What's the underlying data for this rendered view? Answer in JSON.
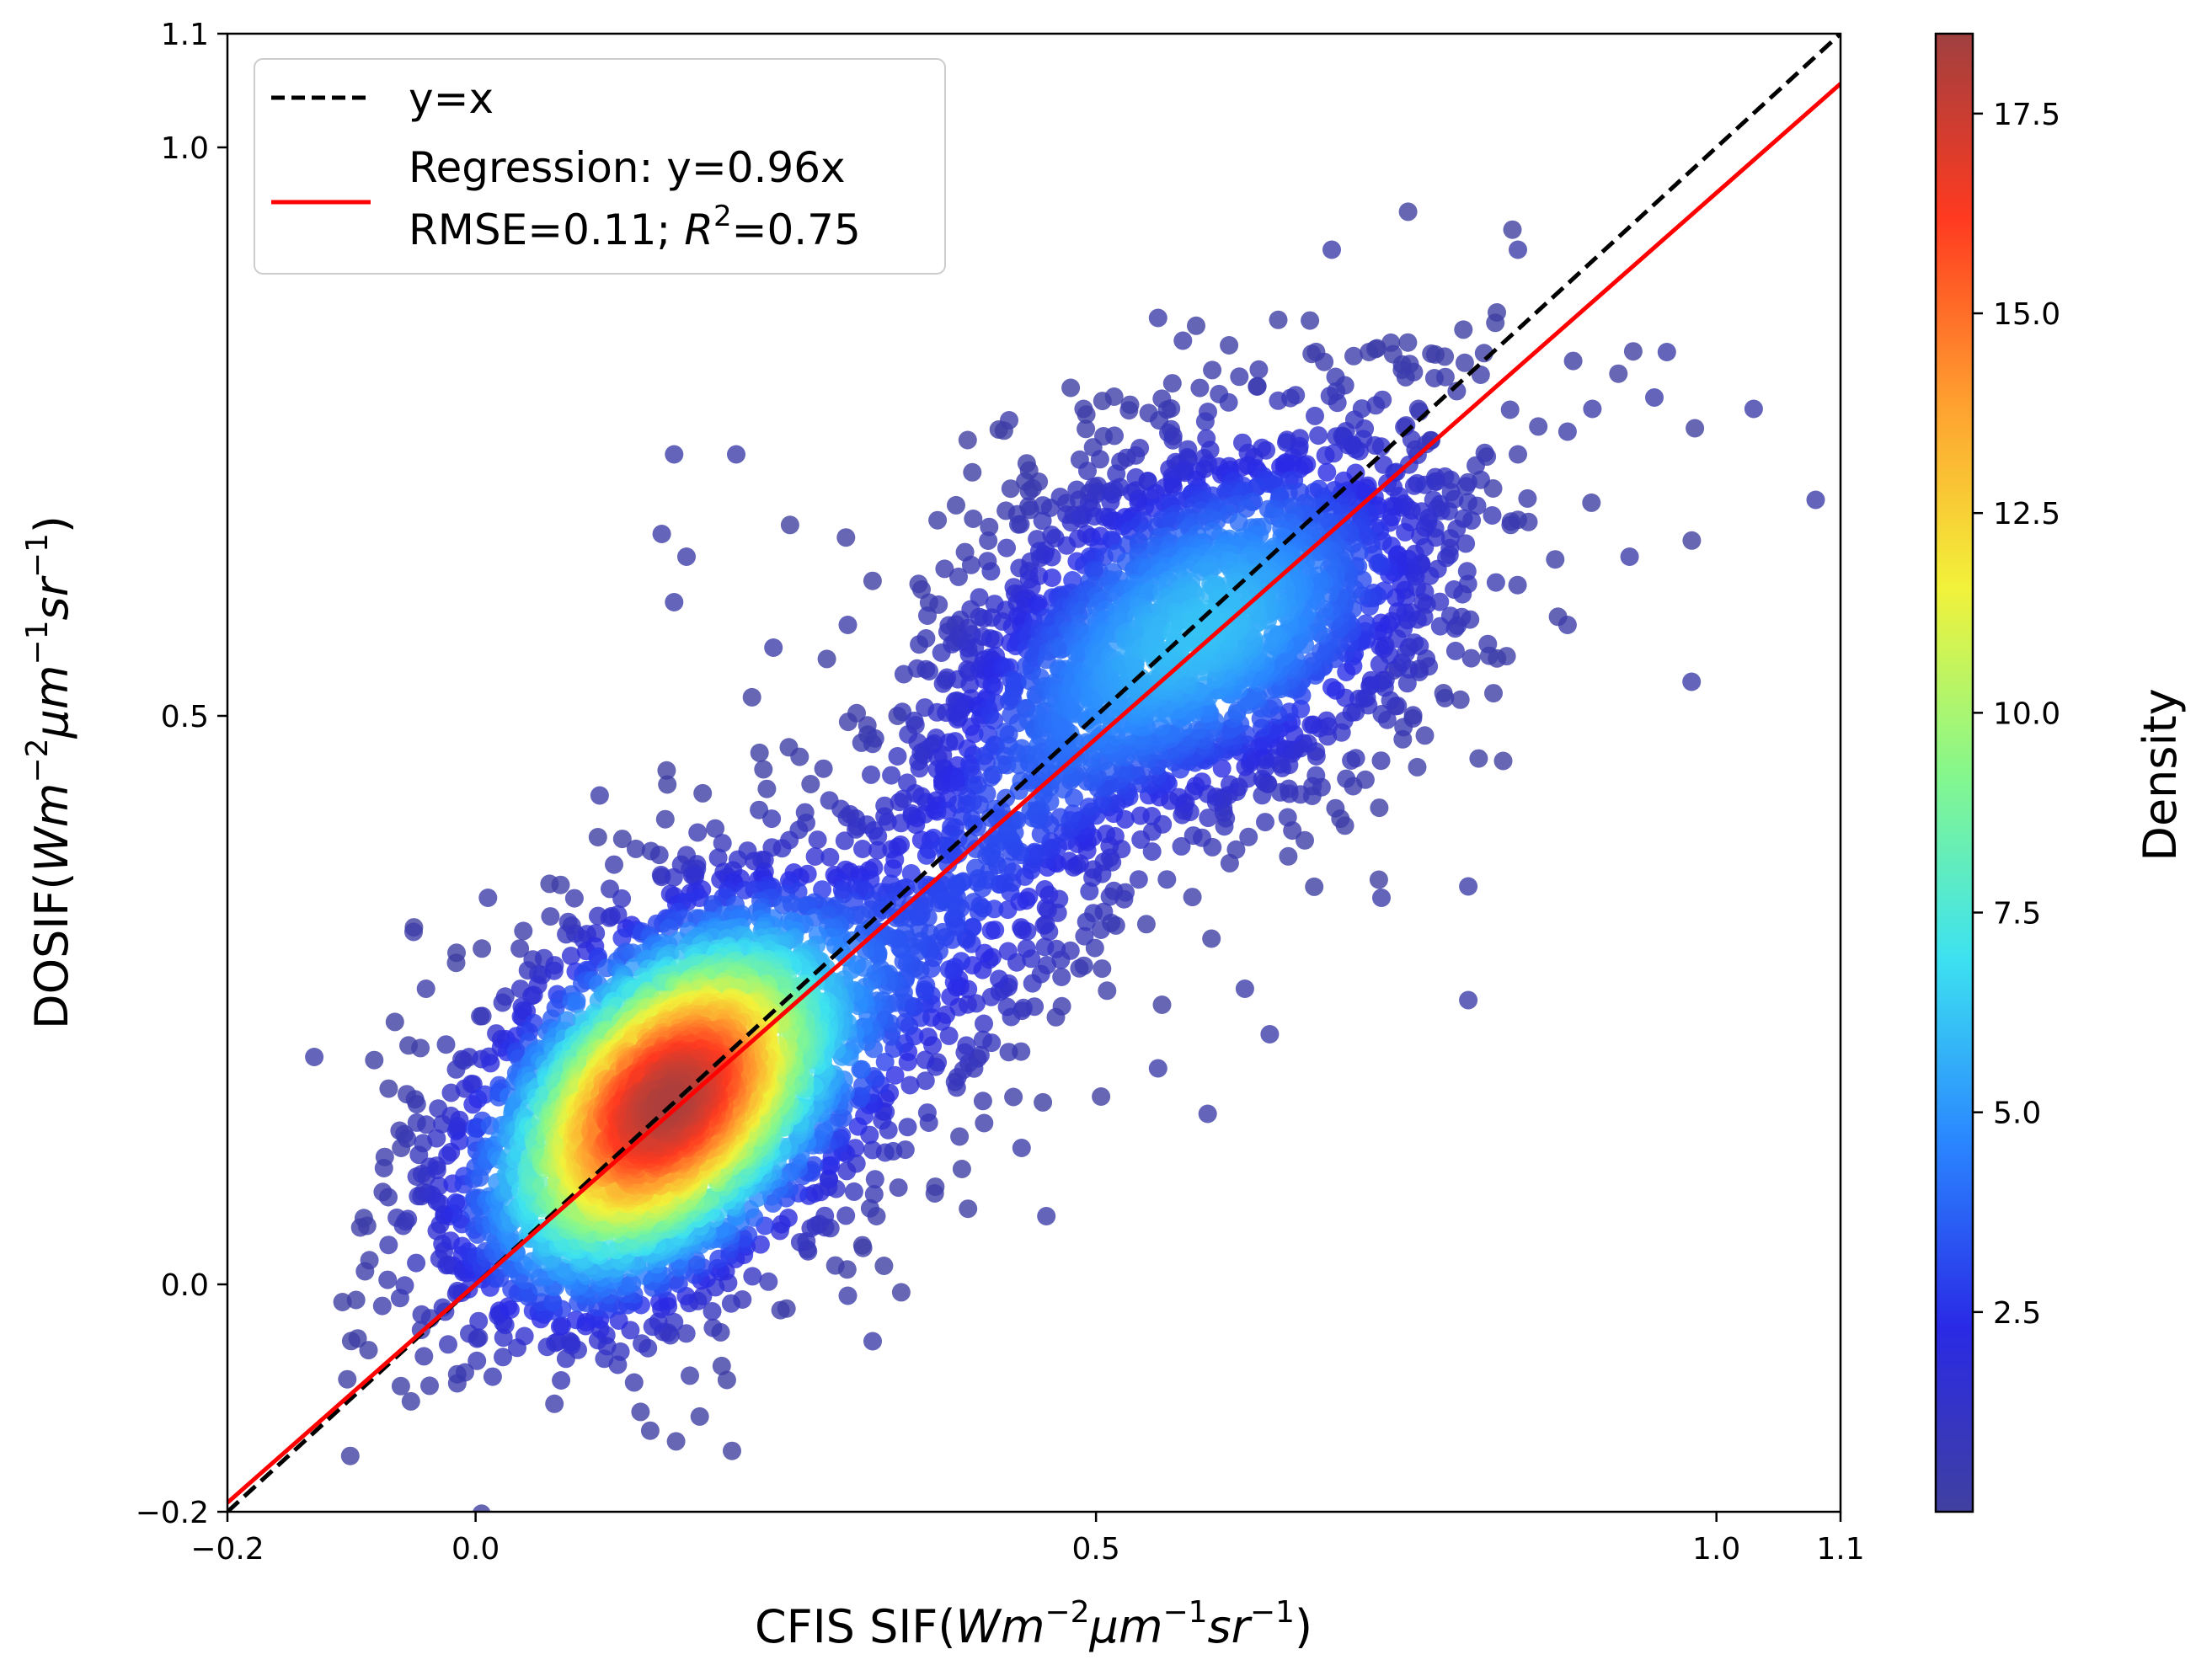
{
  "chart_data": {
    "type": "scatter",
    "title": "",
    "xlabel": {
      "prefix": "CFIS SIF(",
      "unit_parts": [
        "Wm",
        "−2",
        "μm",
        "−1",
        "sr",
        "−1"
      ],
      "suffix": ")"
    },
    "ylabel": {
      "prefix": "DOSIF(",
      "unit_parts": [
        "Wm",
        "−2",
        "μm",
        "−1",
        "sr",
        "−1"
      ],
      "suffix": ")"
    },
    "xlim": [
      -0.2,
      1.1
    ],
    "ylim": [
      -0.2,
      1.1
    ],
    "xticks": [
      {
        "value": -0.2,
        "label": "−0.2"
      },
      {
        "value": 0.0,
        "label": "0.0"
      },
      {
        "value": 0.5,
        "label": "0.5"
      },
      {
        "value": 1.0,
        "label": "1.0"
      },
      {
        "value": 1.1,
        "label": "1.1"
      }
    ],
    "yticks": [
      {
        "value": -0.2,
        "label": "−0.2"
      },
      {
        "value": 0.0,
        "label": "0.0"
      },
      {
        "value": 0.5,
        "label": "0.5"
      },
      {
        "value": 1.0,
        "label": "1.0"
      },
      {
        "value": 1.1,
        "label": "1.1"
      }
    ],
    "series": [
      {
        "name": "y=x",
        "kind": "line",
        "slope": 1.0,
        "color": "#000000",
        "dash": true
      },
      {
        "name": "Regression: y=0.96x",
        "kind": "line",
        "slope": 0.96,
        "color": "#ff0000",
        "dash": false
      }
    ],
    "legend": {
      "position": "top-left",
      "entries": [
        {
          "label": "y=x",
          "color": "#000000",
          "dash": true
        },
        {
          "label": "Regression: y=0.96x",
          "color": "#ff0000",
          "dash": false
        }
      ],
      "stats_prefix": "RMSE=0.11; ",
      "stats_r": "R",
      "stats_sup": "2",
      "stats_suffix": "=0.75"
    },
    "clusters": [
      {
        "cx": 0.155,
        "cy": 0.16,
        "sx": 0.085,
        "sy": 0.095,
        "rho": 0.45,
        "n": 3400,
        "peak_density": 18.2
      },
      {
        "cx": 0.59,
        "cy": 0.58,
        "sx": 0.11,
        "sy": 0.1,
        "rho": 0.4,
        "n": 2100,
        "peak_density": 6.0
      },
      {
        "cx": 0.4,
        "cy": 0.35,
        "sx": 0.08,
        "sy": 0.12,
        "rho": 0.55,
        "n": 500,
        "peak_density": 2.5
      }
    ],
    "outliers": [
      [
        -0.13,
        0.2
      ],
      [
        -0.06,
        0.12
      ],
      [
        -0.05,
        0.31
      ],
      [
        -0.04,
        0.26
      ],
      [
        0.01,
        0.34
      ],
      [
        0.16,
        0.73
      ],
      [
        0.21,
        0.73
      ],
      [
        0.15,
        0.66
      ],
      [
        0.16,
        0.6
      ],
      [
        0.17,
        0.64
      ],
      [
        0.82,
        0.7
      ],
      [
        0.84,
        0.73
      ],
      [
        0.88,
        0.75
      ],
      [
        0.9,
        0.77
      ],
      [
        0.95,
        0.78
      ],
      [
        0.96,
        0.82
      ],
      [
        1.03,
        0.77
      ],
      [
        1.08,
        0.69
      ],
      [
        0.98,
        0.53
      ],
      [
        0.69,
        0.91
      ],
      [
        0.84,
        0.91
      ],
      [
        0.57,
        0.83
      ],
      [
        0.55,
        0.85
      ],
      [
        0.8,
        0.35
      ],
      [
        0.8,
        0.25
      ],
      [
        0.73,
        0.34
      ],
      [
        0.62,
        0.26
      ],
      [
        0.44,
        0.12
      ],
      [
        0.46,
        0.06
      ],
      [
        0.32,
        -0.05
      ],
      [
        0.3,
        -0.01
      ],
      [
        0.37,
        0.08
      ],
      [
        0.39,
        0.13
      ],
      [
        0.55,
        0.19
      ],
      [
        0.59,
        0.15
      ],
      [
        0.64,
        0.22
      ],
      [
        0.74,
        0.54
      ],
      [
        0.78,
        0.52
      ],
      [
        0.88,
        0.58
      ],
      [
        0.93,
        0.64
      ],
      [
        0.72,
        0.82
      ],
      [
        0.81,
        0.8
      ],
      [
        0.63,
        0.79
      ],
      [
        0.49,
        0.77
      ],
      [
        0.43,
        0.76
      ],
      [
        0.1,
        0.43
      ],
      [
        0.27,
        0.44
      ],
      [
        0.34,
        0.5
      ],
      [
        0.24,
        0.56
      ],
      [
        0.3,
        0.58
      ]
    ],
    "colorbar": {
      "label": "Density",
      "min": 0,
      "max": 18.5,
      "ticks": [
        {
          "value": 2.5,
          "label": "2.5"
        },
        {
          "value": 5.0,
          "label": "5.0"
        },
        {
          "value": 7.5,
          "label": "7.5"
        },
        {
          "value": 10.0,
          "label": "10.0"
        },
        {
          "value": 12.5,
          "label": "12.5"
        },
        {
          "value": 15.0,
          "label": "15.0"
        },
        {
          "value": 17.5,
          "label": "17.5"
        }
      ],
      "colormap": [
        "#4040a0",
        "#2a2ae6",
        "#2a86ff",
        "#3de2f0",
        "#86f78c",
        "#f2f23a",
        "#ffa030",
        "#ff3a20",
        "#a04040"
      ]
    }
  }
}
